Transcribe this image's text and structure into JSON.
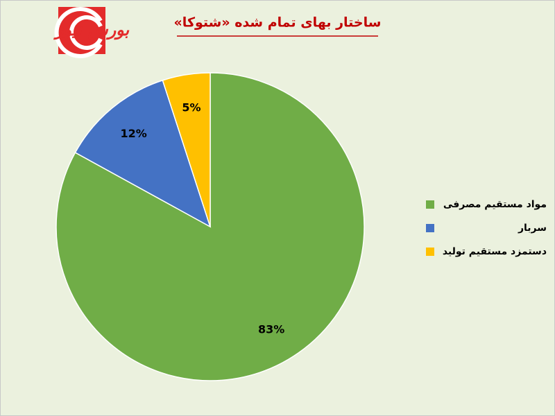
{
  "logo": {
    "text": "بورس نیوز"
  },
  "chart_data": {
    "type": "pie",
    "title": "ساختار بهای تمام شده «شتوکا»",
    "categories": [
      "مواد مستقیم مصرفی",
      "سربار",
      "دستمزد مستقیم تولید"
    ],
    "values": [
      83,
      12,
      5
    ],
    "value_labels": [
      "83%",
      "12%",
      "5%"
    ],
    "colors": [
      "#70ad47",
      "#4472c4",
      "#ffc000"
    ],
    "legend": "right"
  }
}
